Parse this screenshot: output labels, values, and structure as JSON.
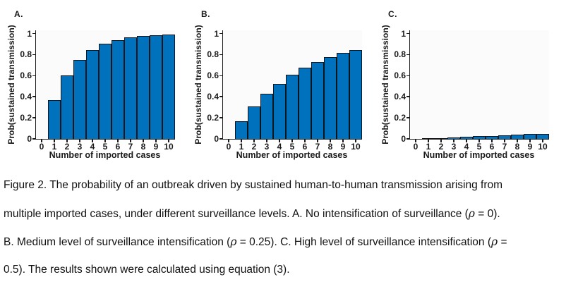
{
  "colors": {
    "bar_fill": "#0072BD",
    "bar_edge": "#10151c",
    "axis": "#1a1a1a"
  },
  "chart_data": [
    {
      "type": "bar",
      "panel_label": "A.",
      "x": [
        1,
        2,
        3,
        4,
        5,
        6,
        7,
        8,
        9,
        10
      ],
      "values": [
        0.37,
        0.603,
        0.751,
        0.843,
        0.901,
        0.937,
        0.96,
        0.975,
        0.984,
        0.99
      ],
      "xlabel": "Number of imported cases",
      "ylabel": "Prob(sustained transmission)",
      "xticks": [
        "0",
        "1",
        "2",
        "3",
        "4",
        "5",
        "6",
        "7",
        "8",
        "9",
        "10"
      ],
      "yticks": [
        "0",
        "0.2",
        "0.4",
        "0.6",
        "0.8",
        "1"
      ],
      "xlim": [
        -0.44,
        10.5
      ],
      "ylim": [
        0,
        1.03
      ],
      "grid": false,
      "legend": null
    },
    {
      "type": "bar",
      "panel_label": "B.",
      "x": [
        1,
        2,
        3,
        4,
        5,
        6,
        7,
        8,
        9,
        10
      ],
      "values": [
        0.17,
        0.311,
        0.428,
        0.525,
        0.606,
        0.673,
        0.729,
        0.775,
        0.813,
        0.845
      ],
      "xlabel": "Number of imported cases",
      "ylabel": "Prob(sustained transmission)",
      "xticks": [
        "0",
        "1",
        "2",
        "3",
        "4",
        "5",
        "6",
        "7",
        "8",
        "9",
        "10"
      ],
      "yticks": [
        "0",
        "0.2",
        "0.4",
        "0.6",
        "0.8",
        "1"
      ],
      "xlim": [
        -0.44,
        10.5
      ],
      "ylim": [
        0,
        1.03
      ],
      "grid": false,
      "legend": null
    },
    {
      "type": "bar",
      "panel_label": "C.",
      "x": [
        1,
        2,
        3,
        4,
        5,
        6,
        7,
        8,
        9,
        10
      ],
      "values": [
        0.005,
        0.01,
        0.015,
        0.02,
        0.025,
        0.03,
        0.034,
        0.039,
        0.044,
        0.049
      ],
      "xlabel": "Number of imported cases",
      "ylabel": "Prob(sustained transmission)",
      "xticks": [
        "0",
        "1",
        "2",
        "3",
        "4",
        "5",
        "6",
        "7",
        "8",
        "9",
        "10"
      ],
      "yticks": [
        "0",
        "0.2",
        "0.4",
        "0.6",
        "0.8",
        "1"
      ],
      "xlim": [
        -0.44,
        10.5
      ],
      "ylim": [
        0,
        1.03
      ],
      "grid": false,
      "legend": null
    }
  ],
  "caption": {
    "lines": [
      "Figure 2. The probability of an outbreak driven by sustained human-to-human transmission arising from",
      "multiple imported cases, under different surveillance levels. A. No intensification of surveillance (ρ = 0).",
      "B. Medium level of surveillance intensification (ρ = 0.25). C. High level of surveillance intensification (ρ =",
      "0.5). The results shown were calculated using equation (3)."
    ]
  }
}
